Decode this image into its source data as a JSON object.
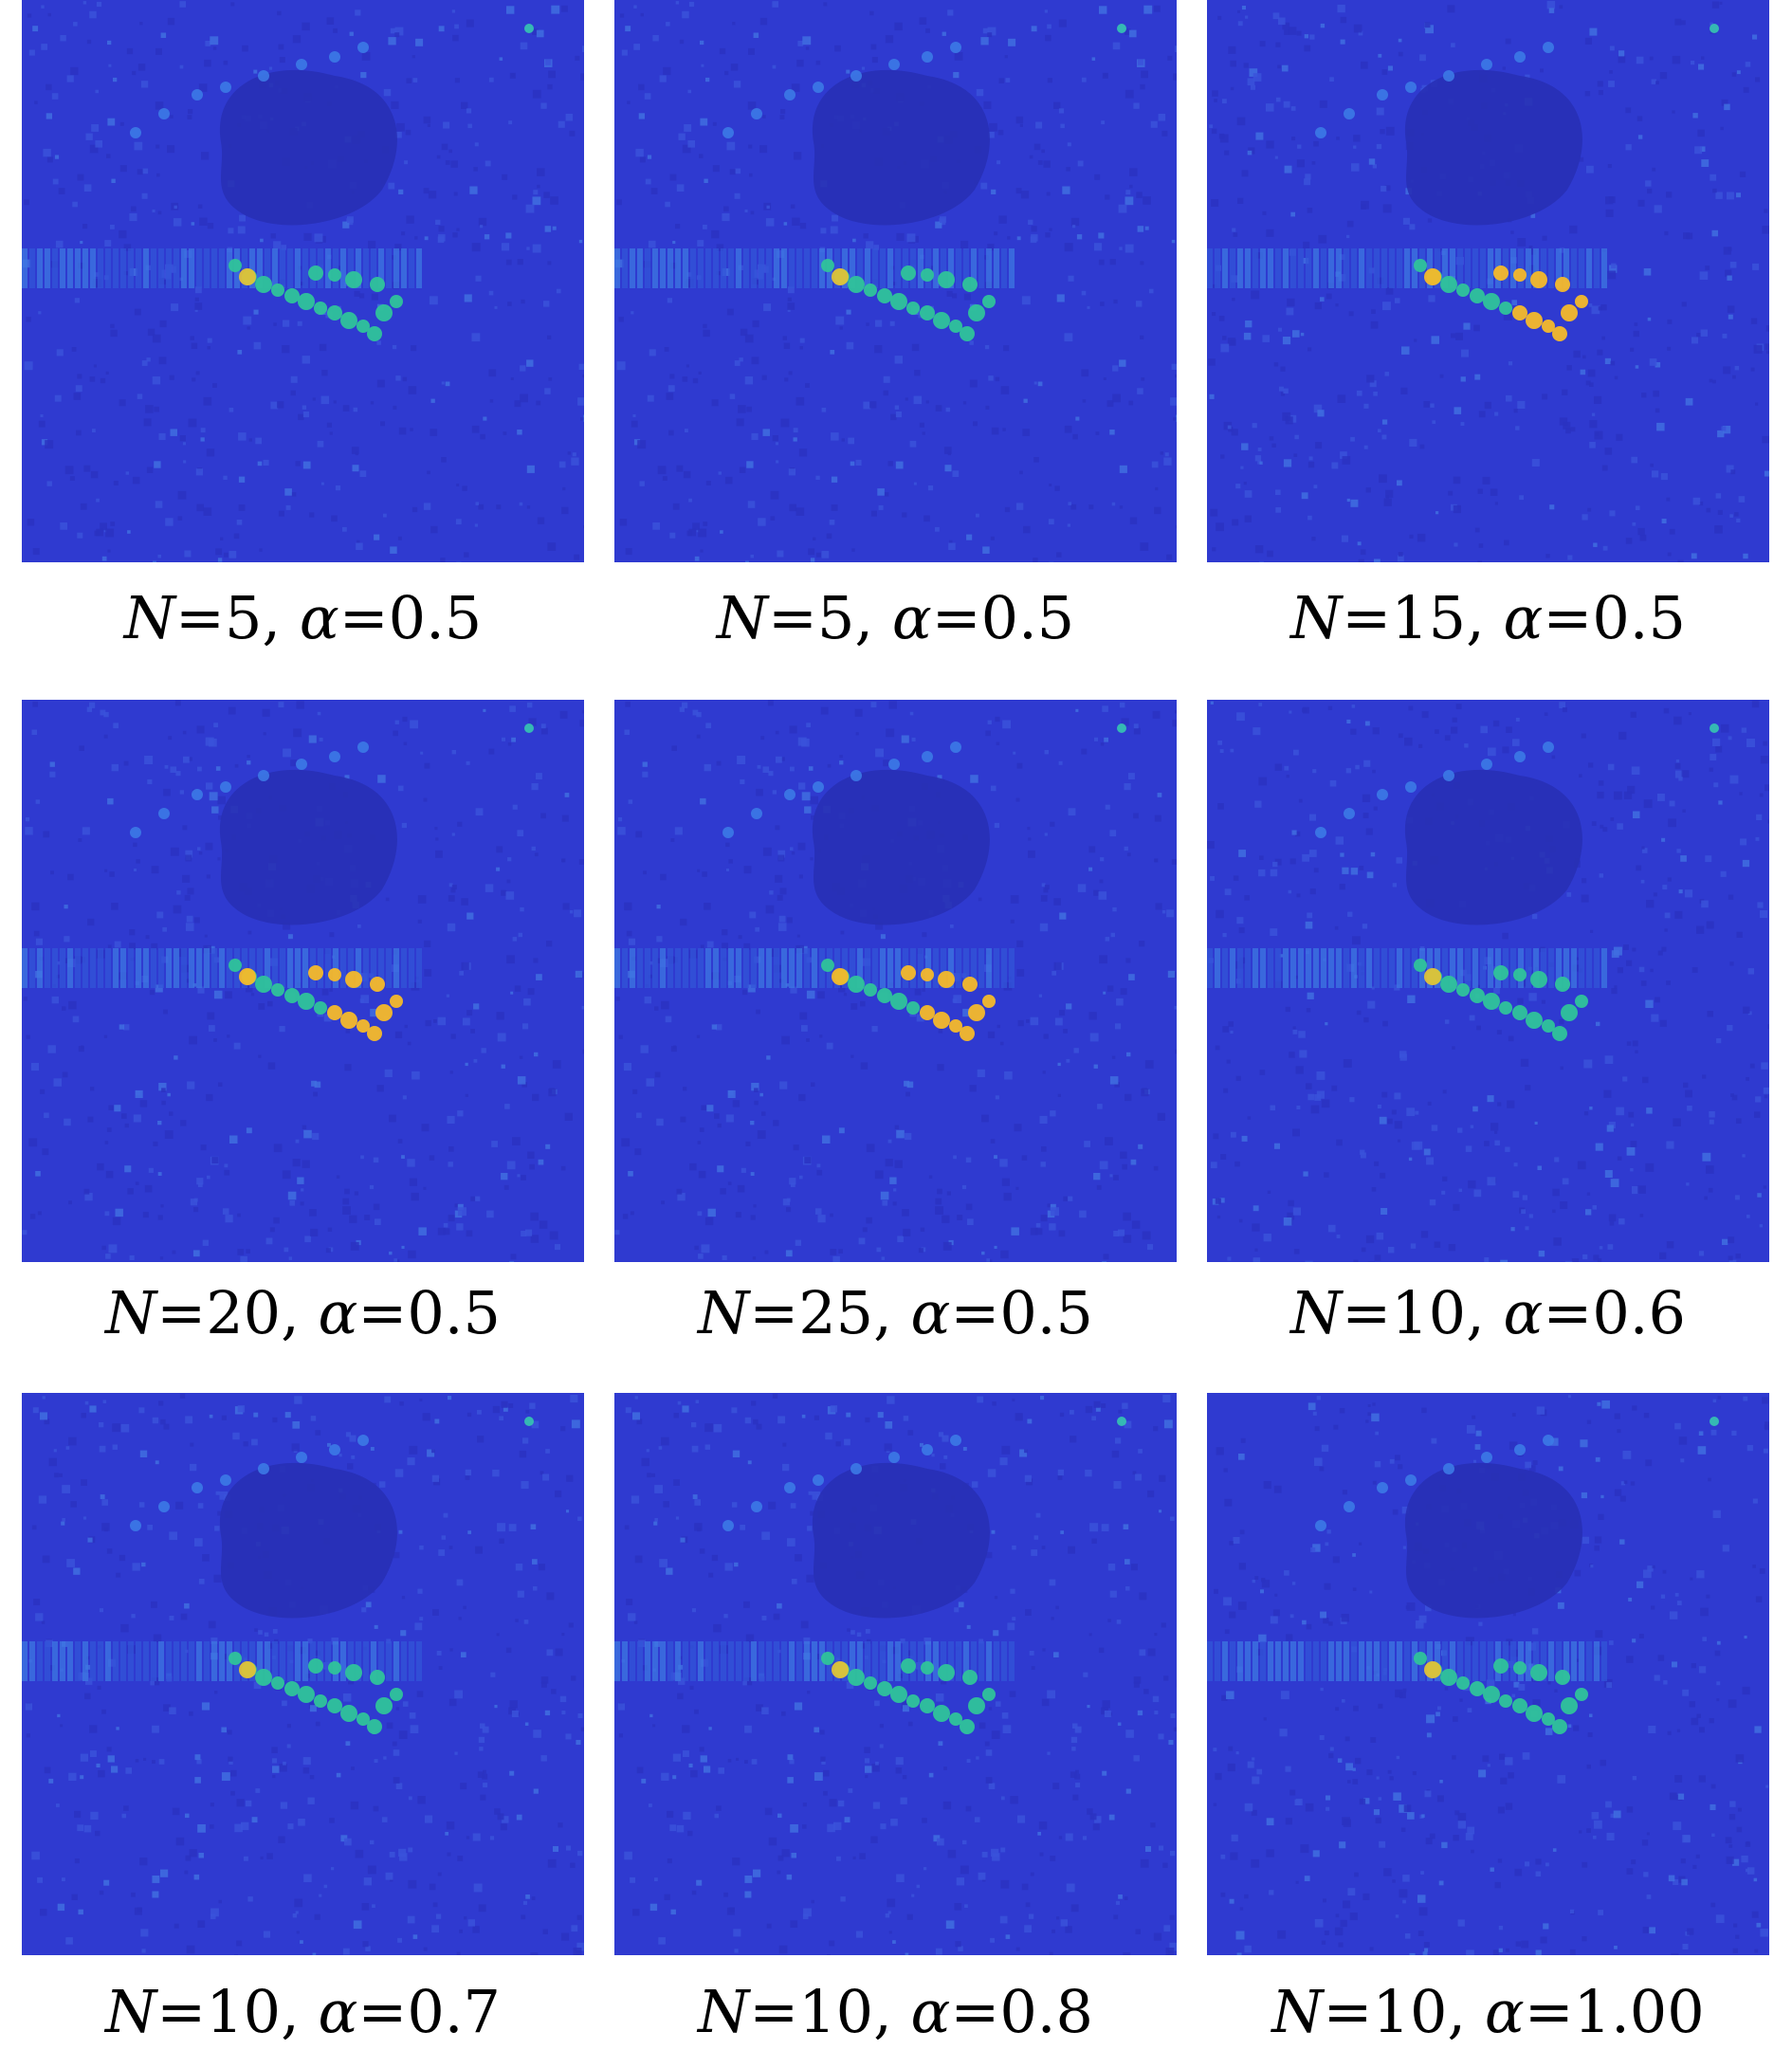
{
  "figure": {
    "colormap": {
      "low": "#3440d2",
      "mid": "#2ca5d8",
      "mid2": "#2fc39a",
      "high": "#f5b92a",
      "background": "#2f3ad0"
    },
    "panels": [
      {
        "N_label": "N",
        "N_value": "=5, ",
        "alpha_label": "α",
        "alpha_value": "=0.5",
        "intensity": 0.55
      },
      {
        "N_label": "N",
        "N_value": "=5, ",
        "alpha_label": "α",
        "alpha_value": "=0.5",
        "intensity": 0.55
      },
      {
        "N_label": "N",
        "N_value": "=15, ",
        "alpha_label": "α",
        "alpha_value": "=0.5",
        "intensity": 0.95
      },
      {
        "N_label": "N",
        "N_value": "=20, ",
        "alpha_label": "α",
        "alpha_value": "=0.5",
        "intensity": 0.85
      },
      {
        "N_label": "N",
        "N_value": "=25, ",
        "alpha_label": "α",
        "alpha_value": "=0.5",
        "intensity": 0.8
      },
      {
        "N_label": "N",
        "N_value": "=10, ",
        "alpha_label": "α",
        "alpha_value": "=0.6",
        "intensity": 0.6
      },
      {
        "N_label": "N",
        "N_value": "=10, ",
        "alpha_label": "α",
        "alpha_value": "=0.7",
        "intensity": 0.6
      },
      {
        "N_label": "N",
        "N_value": "=10, ",
        "alpha_label": "α",
        "alpha_value": "=0.8",
        "intensity": 0.6
      },
      {
        "N_label": "N",
        "N_value": "=10, ",
        "alpha_label": "α",
        "alpha_value": "=1.00",
        "intensity": 0.6
      }
    ]
  }
}
